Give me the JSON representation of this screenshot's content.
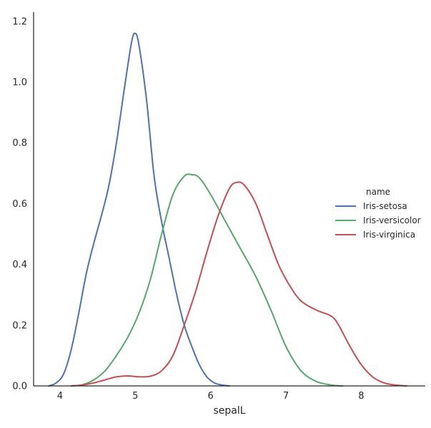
{
  "chart_data": {
    "type": "line",
    "title": "",
    "xlabel": "sepalL",
    "ylabel": "",
    "xlim": [
      3.65,
      8.85
    ],
    "ylim": [
      0.0,
      1.23
    ],
    "x_ticks": [
      4,
      5,
      6,
      7,
      8
    ],
    "y_ticks": [
      0.0,
      0.2,
      0.4,
      0.6,
      0.8,
      1.0,
      1.2
    ],
    "x_tick_labels": [
      "4",
      "5",
      "6",
      "7",
      "8"
    ],
    "y_tick_labels": [
      "0.0",
      "0.2",
      "0.4",
      "0.6",
      "0.8",
      "1.0",
      "1.2"
    ],
    "grid": false,
    "legend": {
      "title": "name",
      "position": "right"
    },
    "series": [
      {
        "name": "Iris-setosa",
        "color": "#4c72b0",
        "x": [
          3.85,
          3.95,
          4.05,
          4.15,
          4.25,
          4.35,
          4.45,
          4.55,
          4.65,
          4.75,
          4.85,
          4.95,
          5.0,
          5.05,
          5.15,
          5.25,
          5.35,
          5.45,
          5.55,
          5.65,
          5.75,
          5.85,
          5.95,
          6.05,
          6.15,
          6.25
        ],
        "y": [
          0.0,
          0.01,
          0.04,
          0.12,
          0.24,
          0.37,
          0.47,
          0.56,
          0.66,
          0.8,
          0.97,
          1.13,
          1.16,
          1.12,
          0.94,
          0.69,
          0.54,
          0.42,
          0.3,
          0.2,
          0.13,
          0.07,
          0.03,
          0.01,
          0.003,
          0.0
        ]
      },
      {
        "name": "Iris-versicolor",
        "color": "#55a868",
        "x": [
          4.15,
          4.3,
          4.45,
          4.6,
          4.75,
          4.9,
          5.05,
          5.2,
          5.35,
          5.5,
          5.65,
          5.75,
          5.85,
          6.0,
          6.2,
          6.4,
          6.6,
          6.8,
          7.0,
          7.2,
          7.4,
          7.6,
          7.75
        ],
        "y": [
          0.0,
          0.004,
          0.02,
          0.05,
          0.1,
          0.16,
          0.24,
          0.35,
          0.5,
          0.63,
          0.69,
          0.695,
          0.685,
          0.63,
          0.54,
          0.45,
          0.36,
          0.25,
          0.13,
          0.05,
          0.015,
          0.003,
          0.0
        ]
      },
      {
        "name": "Iris-virginica",
        "color": "#c44e52",
        "x": [
          4.15,
          4.3,
          4.45,
          4.6,
          4.75,
          4.9,
          5.05,
          5.2,
          5.35,
          5.5,
          5.65,
          5.8,
          5.95,
          6.1,
          6.25,
          6.35,
          6.45,
          6.6,
          6.75,
          6.9,
          7.05,
          7.2,
          7.4,
          7.6,
          7.7,
          7.85,
          8.0,
          8.15,
          8.3,
          8.45,
          8.6
        ],
        "y": [
          0.0,
          0.003,
          0.01,
          0.02,
          0.03,
          0.033,
          0.03,
          0.032,
          0.05,
          0.1,
          0.2,
          0.31,
          0.44,
          0.56,
          0.65,
          0.67,
          0.66,
          0.6,
          0.5,
          0.4,
          0.33,
          0.28,
          0.25,
          0.23,
          0.2,
          0.13,
          0.07,
          0.03,
          0.01,
          0.003,
          0.0
        ]
      }
    ]
  }
}
